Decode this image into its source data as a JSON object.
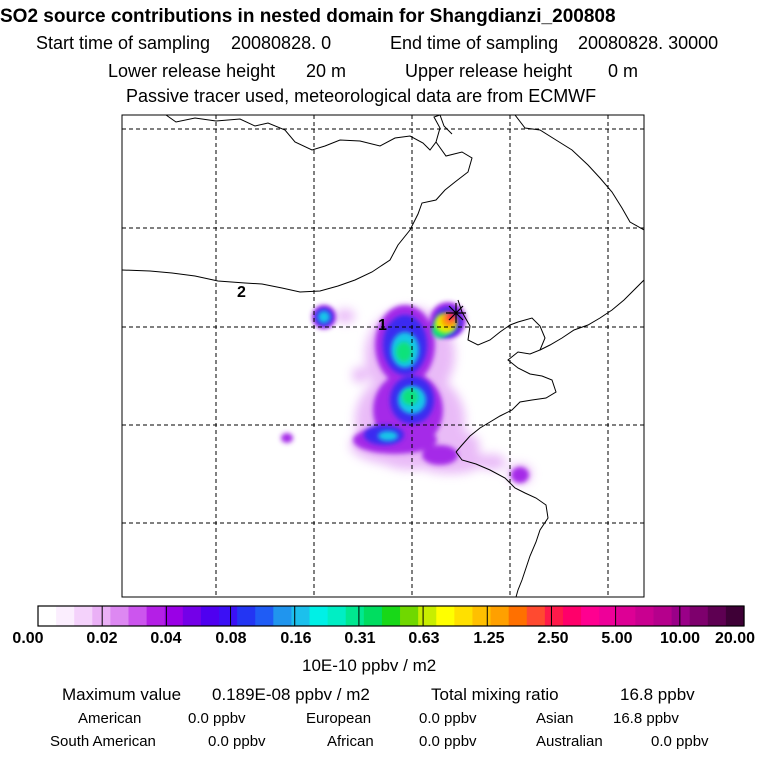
{
  "title": "SO2 source contributions in nested domain for Shangdianzi_200808",
  "header": {
    "start_label": "Start time of sampling",
    "start_value": "20080828.     0",
    "end_label": "End time of sampling",
    "end_value": "20080828. 30000",
    "lower_label": "Lower release height",
    "lower_value": "20 m",
    "upper_label": "Upper release height",
    "upper_value": "0 m",
    "note": "Passive tracer used, meteorological data are from ECMWF"
  },
  "map": {
    "labels": [
      "1",
      "2"
    ],
    "station_marker": "station-star-icon"
  },
  "colorbar": {
    "ticks": [
      "0.00",
      "0.02",
      "0.04",
      "0.08",
      "0.16",
      "0.31",
      "0.63",
      "1.25",
      "2.50",
      "5.00",
      "10.00",
      "20.00"
    ],
    "colors": [
      "#ffffff",
      "#fbeefe",
      "#f4d2fb",
      "#eab0f6",
      "#dd88f2",
      "#cc55ee",
      "#b41fe6",
      "#9a00e6",
      "#7400e8",
      "#4f00f0",
      "#3b10f5",
      "#2335f3",
      "#1f5cf5",
      "#2095ee",
      "#1cc0ec",
      "#00f0e6",
      "#00eec4",
      "#00e890",
      "#00dd60",
      "#18d818",
      "#70d800",
      "#c8ee00",
      "#ffff00",
      "#ffe000",
      "#ffc000",
      "#ffa000",
      "#ff7000",
      "#ff4a30",
      "#ff1a4a",
      "#ff006a",
      "#ff0090",
      "#ee0099",
      "#dd0095",
      "#c90090",
      "#b5008c",
      "#9a0088",
      "#7e006d",
      "#5e0052",
      "#3e0036"
    ],
    "unit": "10E-10 ppbv / m2"
  },
  "footer": {
    "max_label": "Maximum value",
    "max_value": "0.189E-08 ppbv / m2",
    "total_label": "Total mixing ratio",
    "total_value": "16.8 ppbv",
    "regions": [
      {
        "name": "American",
        "value": "0.0 ppbv"
      },
      {
        "name": "European",
        "value": "0.0 ppbv"
      },
      {
        "name": "Asian",
        "value": "16.8 ppbv"
      },
      {
        "name": "South American",
        "value": "0.0 ppbv"
      },
      {
        "name": "African",
        "value": "0.0 ppbv"
      },
      {
        "name": "Australian",
        "value": "0.0 ppbv"
      }
    ]
  }
}
